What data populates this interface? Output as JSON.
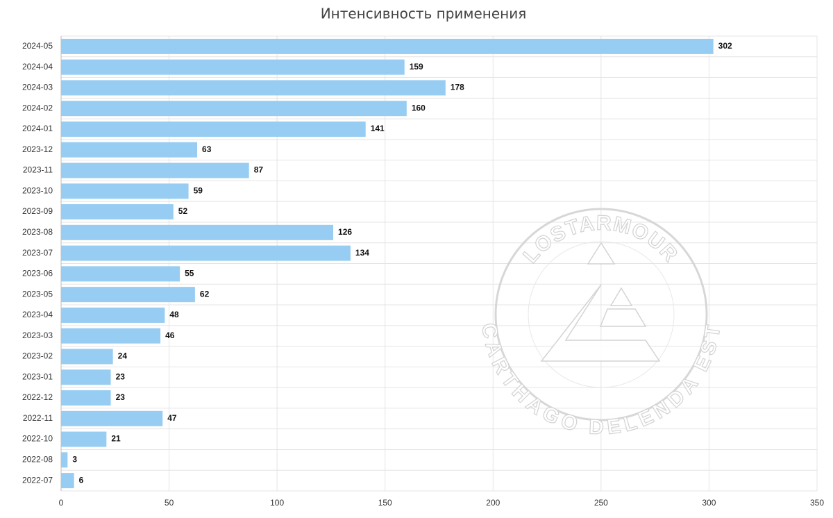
{
  "chart_data": {
    "type": "bar",
    "orientation": "horizontal",
    "title": "Интенсивность применения",
    "categories": [
      "2024-05",
      "2024-04",
      "2024-03",
      "2024-02",
      "2024-01",
      "2023-12",
      "2023-11",
      "2023-10",
      "2023-09",
      "2023-08",
      "2023-07",
      "2023-06",
      "2023-05",
      "2023-04",
      "2023-03",
      "2023-02",
      "2023-01",
      "2022-12",
      "2022-11",
      "2022-10",
      "2022-08",
      "2022-07"
    ],
    "values": [
      302,
      159,
      178,
      160,
      141,
      63,
      87,
      59,
      52,
      126,
      134,
      55,
      62,
      48,
      46,
      24,
      23,
      23,
      47,
      21,
      3,
      6
    ],
    "color": "#97cdf2",
    "xlim": [
      0,
      350
    ],
    "xticks": [
      0,
      50,
      100,
      150,
      200,
      250,
      300,
      350
    ],
    "grid": true,
    "watermark": [
      "LOSTARMOUR",
      "CARTHAGO DELENDA EST"
    ]
  }
}
